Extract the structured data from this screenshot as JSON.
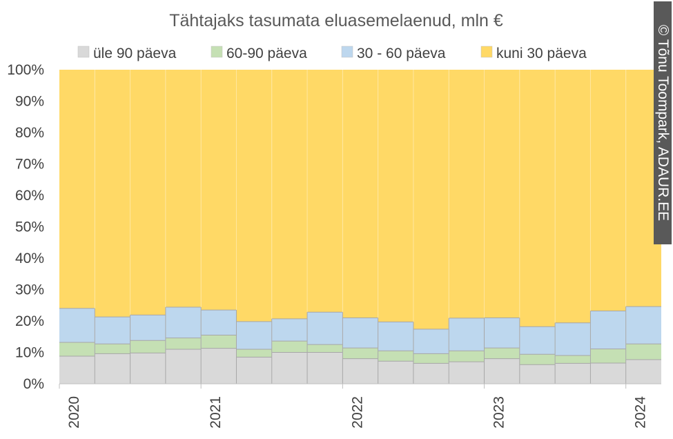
{
  "credit": "© Tõnu Toompark, ADAUR.EE",
  "chart_data": {
    "type": "bar",
    "stacked": true,
    "normalized": true,
    "title": "Tähtajaks tasumata eluasemelaenud, mln €",
    "legend_position": "top",
    "y_ticks": [
      "0%",
      "10%",
      "20%",
      "30%",
      "40%",
      "50%",
      "60%",
      "70%",
      "80%",
      "90%",
      "100%"
    ],
    "ylim": [
      0,
      100
    ],
    "x_tick_labels": [
      "2020",
      "2021",
      "2022",
      "2023",
      "2024"
    ],
    "categories": [
      "2020 Q1",
      "2020 Q2",
      "2020 Q3",
      "2020 Q4",
      "2021 Q1",
      "2021 Q2",
      "2021 Q3",
      "2021 Q4",
      "2022 Q1",
      "2022 Q2",
      "2022 Q3",
      "2022 Q4",
      "2023 Q1",
      "2023 Q2",
      "2023 Q3",
      "2023 Q4",
      "2024 Q1"
    ],
    "series": [
      {
        "name": "üle 90 päeva",
        "color": "#D9D9D9",
        "values": [
          8.8,
          9.6,
          9.8,
          11.0,
          11.3,
          8.5,
          10.0,
          10.0,
          8.0,
          7.2,
          6.5,
          7.0,
          8.0,
          6.1,
          6.5,
          6.6,
          7.7
        ]
      },
      {
        "name": "60-90 päeva",
        "color": "#C5E0B4",
        "values": [
          4.4,
          3.1,
          4.0,
          3.6,
          4.2,
          2.5,
          3.6,
          2.5,
          3.4,
          3.3,
          3.1,
          3.5,
          3.4,
          3.3,
          2.5,
          4.5,
          5.0
        ]
      },
      {
        "name": "30 - 60 päeva",
        "color": "#BDD7EE",
        "values": [
          10.8,
          8.6,
          8.1,
          9.8,
          8.0,
          8.8,
          7.1,
          10.3,
          9.6,
          9.2,
          7.8,
          10.4,
          9.6,
          8.8,
          10.4,
          12.1,
          11.9
        ]
      },
      {
        "name": "kuni 30 päeva",
        "color": "#FFD966",
        "values": [
          76.0,
          78.7,
          78.1,
          75.6,
          76.5,
          80.2,
          79.3,
          77.2,
          79.0,
          80.3,
          82.6,
          79.1,
          79.0,
          81.8,
          80.6,
          76.8,
          75.4
        ]
      }
    ]
  }
}
